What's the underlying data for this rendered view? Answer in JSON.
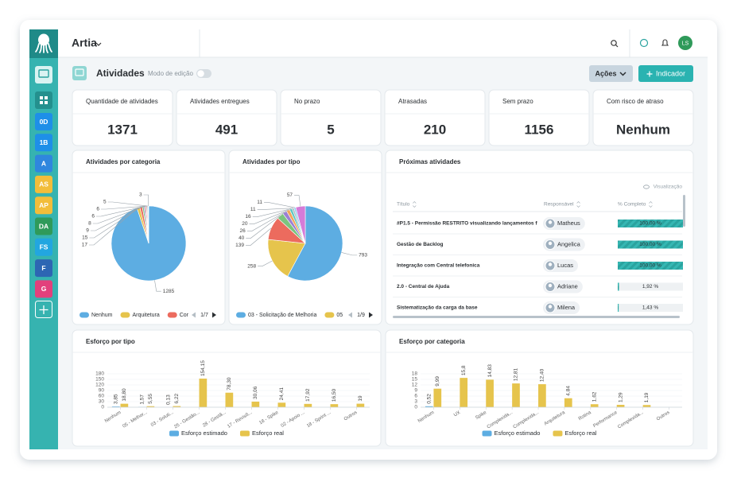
{
  "header": {
    "app": "Artia",
    "avatar": "LS"
  },
  "sidebar": {
    "items": [
      {
        "label": "0D",
        "color": "#1e8fe8"
      },
      {
        "label": "1B",
        "color": "#1e8fe8"
      },
      {
        "label": "A",
        "color": "#2f86de"
      },
      {
        "label": "AS",
        "color": "#f2bd3a"
      },
      {
        "label": "AP",
        "color": "#f2bd3a"
      },
      {
        "label": "DA",
        "color": "#2f9a5a"
      },
      {
        "label": "FS",
        "color": "#22a6e0"
      },
      {
        "label": "F",
        "color": "#2d66b3"
      },
      {
        "label": "G",
        "color": "#e2407c"
      }
    ]
  },
  "toolbar": {
    "title": "Atividades",
    "edit_mode": "Modo de edição",
    "actions": "Ações",
    "add": "Indicador"
  },
  "kpis": [
    {
      "label": "Quantidade de atividades",
      "value": 1371
    },
    {
      "label": "Atividades entregues",
      "value": 491
    },
    {
      "label": "No prazo",
      "value": 5
    },
    {
      "label": "Atrasadas",
      "value": 210
    },
    {
      "label": "Sem prazo",
      "value": 1156
    },
    {
      "label": "Com risco de atraso",
      "value": "Nenhum"
    }
  ],
  "table": {
    "title": "Próximas atividades",
    "view": "Visualização",
    "columns": [
      "Título",
      "Responsável",
      "% Completo"
    ],
    "rows": [
      {
        "title": "#P1.5 - Permissão RESTRITO visualizando lançamentos fina",
        "owner": "Matheus",
        "complete": {
          "value": 100,
          "label": "100,00 %"
        }
      },
      {
        "title": "Gestão de Backlog",
        "owner": "Angelica",
        "complete": {
          "value": 100,
          "label": "100,00 %"
        }
      },
      {
        "title": "Integração com Central telefonica",
        "owner": "Lucas",
        "complete": {
          "value": 100,
          "label": "100,00 %"
        }
      },
      {
        "title": "2.0 - Central de Ajuda",
        "owner": "Adriane",
        "complete": {
          "value": 1.92,
          "label": "1,92 %"
        }
      },
      {
        "title": "Sistematização da carga da base",
        "owner": "Milena",
        "complete": {
          "value": 1.43,
          "label": "1,43 %"
        }
      }
    ]
  },
  "chart_data": [
    {
      "type": "pie",
      "title": "Atividades por categoria",
      "categories": [
        "Nenhum",
        "Arquitetura",
        "Cor",
        null,
        null,
        null,
        null,
        null,
        null
      ],
      "values": [
        1285,
        17,
        15,
        9,
        8,
        6,
        6,
        5,
        3
      ],
      "colors": [
        "#5dade2",
        "#e6c44c",
        "#ec6b5e",
        "#7cc47f",
        "#9b80d3",
        "#f2a65a",
        "#e38cc0",
        "#5ec7c2",
        "#b0b8c0"
      ],
      "legend_page": "1/7"
    },
    {
      "type": "pie",
      "title": "Atividades por tipo",
      "categories": [
        "03 - Solicitação de Melhoria",
        "05",
        null,
        null,
        null,
        null,
        null,
        null,
        null,
        null
      ],
      "values": [
        793,
        258,
        139,
        40,
        26,
        20,
        16,
        11,
        11,
        57
      ],
      "colors": [
        "#5dade2",
        "#e6c44c",
        "#ec6b5e",
        "#7cc47f",
        "#9b80d3",
        "#f2a65a",
        "#5ec7c2",
        "#b0b8c0",
        "#8fd0f0",
        "#d57bd8"
      ],
      "legend_page": "1/9"
    },
    {
      "type": "bar",
      "title": "Esforço por tipo",
      "categories": [
        "Nenhum",
        "05 - Melhor...",
        "03 - Soluti...",
        "25 - Gestão...",
        "28 - Gestã...",
        "17 - Revisõ...",
        "18 - Spike",
        "02 - Apoio ...",
        "18 - Sprint ...",
        "Outros"
      ],
      "series": [
        {
          "name": "Esforço estimado",
          "color": "#5dade2",
          "values": [
            3.85,
            1.57,
            0.13,
            null,
            null,
            null,
            null,
            null,
            null,
            null
          ],
          "value_labels": [
            "3,85",
            "1,57",
            "0,13",
            null,
            null,
            null,
            null,
            null,
            null,
            null
          ]
        },
        {
          "name": "Esforço real",
          "color": "#e6c44c",
          "values": [
            18.8,
            5.55,
            6.22,
            154.15,
            78.3,
            30.06,
            24.41,
            17.92,
            16.5,
            19
          ],
          "value_labels": [
            "18,80",
            "5,55",
            "6,22",
            "154,15",
            "78,30",
            "30,06",
            "24,41",
            "17,92",
            "16,50",
            "19"
          ]
        }
      ],
      "ylim": [
        0,
        180
      ],
      "yticks": [
        0,
        30,
        60,
        90,
        120,
        150,
        180
      ],
      "grid": true
    },
    {
      "type": "bar",
      "title": "Esforço por categoria",
      "categories": [
        "Nenhum",
        "UX",
        "Spike",
        "Complexida...",
        "Complexida...",
        "Arquitetura",
        "Rotina",
        "Performance",
        "Complexida...",
        "Outros"
      ],
      "series": [
        {
          "name": "Esforço estimado",
          "color": "#5dade2",
          "values": [
            0.52,
            null,
            null,
            null,
            null,
            null,
            null,
            null,
            null,
            null
          ],
          "value_labels": [
            "0,52",
            null,
            null,
            null,
            null,
            null,
            null,
            null,
            null,
            null
          ]
        },
        {
          "name": "Esforço real",
          "color": "#e6c44c",
          "values": [
            9.99,
            15.8,
            14.83,
            12.81,
            12.4,
            4.84,
            1.62,
            1.29,
            1.19,
            null
          ],
          "value_labels": [
            "9,99",
            "15,8",
            "14,83",
            "12,81",
            "12,40",
            "4,84",
            "1,62",
            "1,29",
            "1,19",
            null
          ]
        }
      ],
      "ylim": [
        0,
        18
      ],
      "yticks": [
        0,
        3,
        6,
        9,
        12,
        15,
        18
      ],
      "grid": true
    }
  ]
}
